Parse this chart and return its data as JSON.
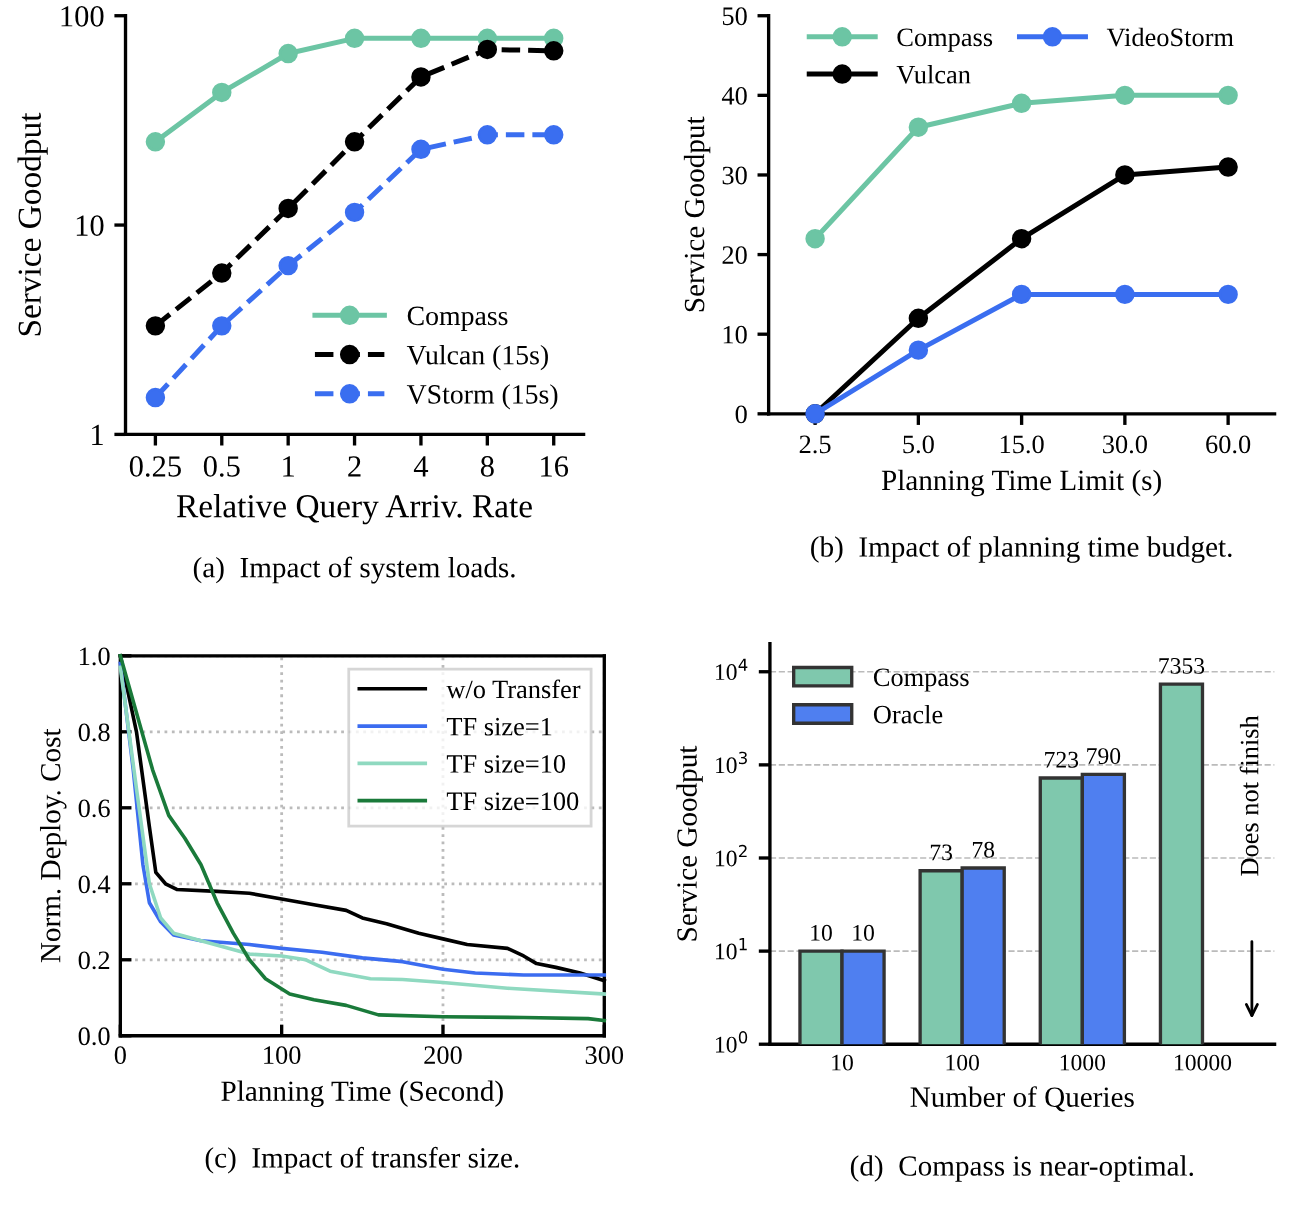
{
  "chart_data": [
    {
      "type": "line",
      "title": "(a)  Impact of system loads.",
      "xlabel": "Relative Query Arriv. Rate",
      "ylabel": "Service Goodput",
      "categories": [
        "0.25",
        "0.5",
        "1",
        "2",
        "4",
        "8",
        "16"
      ],
      "log": "y",
      "ylim": [
        1,
        100
      ],
      "yticks": [
        1,
        10,
        100
      ],
      "marker": "circle",
      "legend": "lower right",
      "series": [
        {
          "name": "Compass",
          "color": "#6cc5a4",
          "line_style": "solid",
          "values": [
            25,
            43,
            66,
            78,
            78,
            78,
            78
          ]
        },
        {
          "name": "Vulcan (15s)",
          "color": "#000000",
          "line_style": "dashed",
          "values": [
            3.3,
            5.9,
            12,
            25,
            51,
            69,
            68
          ]
        },
        {
          "name": "VStorm (15s)",
          "color": "#3a6ef0",
          "line_style": "dashed",
          "values": [
            1.5,
            3.3,
            6.4,
            11.5,
            23,
            27,
            27
          ]
        }
      ]
    },
    {
      "type": "line",
      "title": "(b)  Impact of planning time budget.",
      "xlabel": "Planning Time Limit (s)",
      "ylabel": "Service Goodput",
      "categories": [
        "2.5",
        "5.0",
        "15.0",
        "30.0",
        "60.0"
      ],
      "ylim": [
        0,
        50
      ],
      "yticks": [
        0,
        10,
        20,
        30,
        40,
        50
      ],
      "marker": "circle",
      "legend": "top",
      "series": [
        {
          "name": "Compass",
          "color": "#6cc5a4",
          "values": [
            22,
            36,
            39,
            40,
            40
          ]
        },
        {
          "name": "Vulcan",
          "color": "#000000",
          "values": [
            0,
            12,
            22,
            30,
            31
          ]
        },
        {
          "name": "VideoStorm",
          "color": "#3a6ef0",
          "values": [
            0,
            8,
            15,
            15,
            15
          ]
        }
      ]
    },
    {
      "type": "line",
      "title": "(c)  Impact of transfer size.",
      "xlabel": "Planning Time (Second)",
      "ylabel": "Norm. Deploy. Cost",
      "xlim": [
        0,
        300
      ],
      "xticks": [
        0,
        100,
        200,
        300
      ],
      "ylim": [
        0,
        1
      ],
      "yticks": [
        {
          "value": 0,
          "label": "0.0"
        },
        {
          "value": 0.2,
          "label": "0.2"
        },
        {
          "value": 0.4,
          "label": "0.4"
        },
        {
          "value": 0.6,
          "label": "0.6"
        },
        {
          "value": 0.8,
          "label": "0.8"
        },
        {
          "value": 1,
          "label": "1.0"
        }
      ],
      "grid": true,
      "legend": "top right",
      "series": [
        {
          "name": "w/o Transfer",
          "color": "#000000",
          "x": [
            0,
            10,
            18,
            22,
            28,
            35,
            60,
            80,
            100,
            120,
            140,
            150,
            165,
            185,
            200,
            215,
            240,
            250,
            258,
            270,
            285,
            300
          ],
          "values": [
            1.0,
            0.8,
            0.55,
            0.43,
            0.4,
            0.385,
            0.38,
            0.375,
            0.36,
            0.345,
            0.33,
            0.31,
            0.295,
            0.27,
            0.255,
            0.24,
            0.23,
            0.21,
            0.19,
            0.18,
            0.165,
            0.145
          ]
        },
        {
          "name": "TF size=1",
          "color": "#3b6cf0",
          "x": [
            0,
            8,
            14,
            18,
            25,
            33,
            50,
            80,
            100,
            125,
            150,
            175,
            200,
            220,
            250,
            300
          ],
          "values": [
            0.98,
            0.7,
            0.45,
            0.35,
            0.3,
            0.265,
            0.25,
            0.24,
            0.23,
            0.22,
            0.205,
            0.195,
            0.175,
            0.165,
            0.16,
            0.16
          ]
        },
        {
          "name": "TF size=10",
          "color": "#8fd9c0",
          "x": [
            0,
            10,
            18,
            25,
            33,
            50,
            80,
            100,
            115,
            130,
            155,
            175,
            200,
            240,
            300
          ],
          "values": [
            0.97,
            0.65,
            0.4,
            0.31,
            0.27,
            0.25,
            0.215,
            0.21,
            0.2,
            0.17,
            0.15,
            0.148,
            0.14,
            0.125,
            0.11
          ]
        },
        {
          "name": "TF size=100",
          "color": "#1a7a3a",
          "x": [
            0,
            10,
            20,
            30,
            40,
            50,
            60,
            70,
            80,
            90,
            105,
            120,
            140,
            160,
            200,
            250,
            290,
            300
          ],
          "values": [
            1.0,
            0.85,
            0.7,
            0.58,
            0.52,
            0.45,
            0.35,
            0.27,
            0.2,
            0.15,
            0.11,
            0.095,
            0.08,
            0.055,
            0.05,
            0.048,
            0.045,
            0.04
          ]
        }
      ]
    },
    {
      "type": "bar",
      "title": "(d)  Compass is near-optimal.",
      "xlabel": "Number of Queries",
      "ylabel": "Service Goodput",
      "categories": [
        "10",
        "100",
        "1000",
        "10000"
      ],
      "log": "y",
      "ylim": [
        1,
        20000
      ],
      "yticks": [
        {
          "value": 1,
          "label": "10$^{0}$"
        },
        {
          "value": 10,
          "label": "10$^{1}$"
        },
        {
          "value": 100,
          "label": "10$^{2}$"
        },
        {
          "value": 1000,
          "label": "10$^{3}$"
        },
        {
          "value": 10000,
          "label": "10$^{4}$"
        }
      ],
      "grid": "y",
      "legend": "top left",
      "data_labels": true,
      "annotations": [
        "Does not finish"
      ],
      "series": [
        {
          "name": "Compass",
          "color": "#7fc8ad",
          "values": [
            10,
            73,
            723,
            7353
          ]
        },
        {
          "name": "Oracle",
          "color": "#4f7ff0",
          "values": [
            10,
            78,
            790,
            null
          ]
        }
      ]
    }
  ]
}
